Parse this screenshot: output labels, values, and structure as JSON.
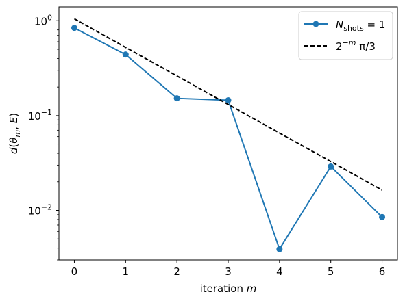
{
  "chart_data": {
    "type": "line",
    "xlabel": "iteration m",
    "ylabel": "d(θ_m, E)",
    "xlim": [
      -0.3,
      6.3
    ],
    "ylim": [
      0.003,
      1.4
    ],
    "y_scale": "log",
    "grid": false,
    "legend_position": "top-right",
    "x_ticks": [
      0,
      1,
      2,
      3,
      4,
      5,
      6
    ],
    "y_ticks": [
      0.01,
      0.1,
      1
    ],
    "y_tick_labels": [
      {
        "base": "10",
        "exp": "−2"
      },
      {
        "base": "10",
        "exp": "−1"
      },
      {
        "base": "10",
        "exp": "0"
      }
    ],
    "series": [
      {
        "name": "N_shots = 1",
        "legend_main": "N",
        "legend_sub": "shots",
        "legend_rest": " = 1",
        "style": "solid",
        "marker": "circle",
        "color": "#1f77b4",
        "x": [
          0,
          1,
          2,
          3,
          4,
          5,
          6
        ],
        "y": [
          0.84,
          0.44,
          0.152,
          0.145,
          0.0039,
          0.029,
          0.0085
        ]
      },
      {
        "name": "2^-m π/3",
        "legend_base": "2",
        "legend_exp": "−m",
        "legend_rest": " π/3",
        "style": "dashed",
        "marker": "none",
        "color": "#000000",
        "x": [
          0,
          1,
          2,
          3,
          4,
          5,
          6
        ],
        "y": [
          1.0472,
          0.5236,
          0.2618,
          0.1309,
          0.06545,
          0.03272,
          0.01636
        ]
      }
    ]
  }
}
